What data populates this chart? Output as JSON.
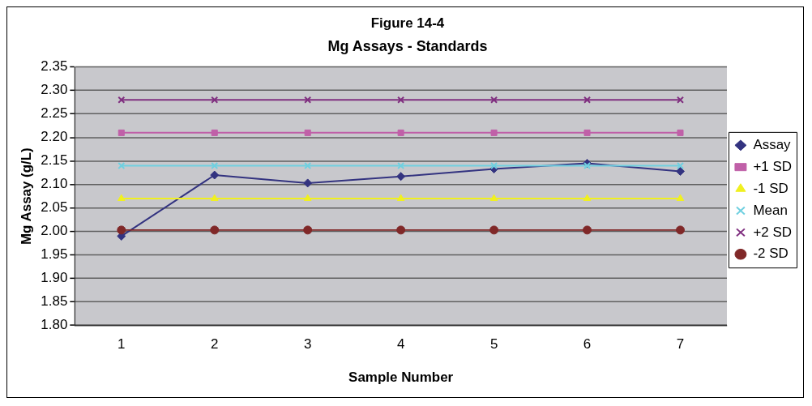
{
  "chart_data": {
    "type": "line",
    "title": "Figure 14-4",
    "subtitle": "Mg Assays - Standards",
    "xlabel": "Sample Number",
    "ylabel": "Mg Assay (g/L)",
    "categories": [
      "1",
      "2",
      "3",
      "4",
      "5",
      "6",
      "7"
    ],
    "series": [
      {
        "name": "Assay",
        "color": "#333380",
        "marker": "diamond",
        "values": [
          1.99,
          2.12,
          2.103,
          2.117,
          2.133,
          2.145,
          2.128
        ]
      },
      {
        "name": "+1 SD",
        "color": "#c060a8",
        "marker": "square",
        "values": [
          2.21,
          2.21,
          2.21,
          2.21,
          2.21,
          2.21,
          2.21
        ]
      },
      {
        "name": "-1 SD",
        "color": "#f0f020",
        "marker": "triangle",
        "values": [
          2.07,
          2.07,
          2.07,
          2.07,
          2.07,
          2.07,
          2.07
        ]
      },
      {
        "name": "Mean",
        "color": "#70d0e0",
        "marker": "cross",
        "values": [
          2.14,
          2.14,
          2.14,
          2.14,
          2.14,
          2.14,
          2.14
        ]
      },
      {
        "name": "+2 SD",
        "color": "#803080",
        "marker": "cross",
        "values": [
          2.28,
          2.28,
          2.28,
          2.28,
          2.28,
          2.28,
          2.28
        ]
      },
      {
        "name": "-2 SD",
        "color": "#802828",
        "marker": "circle",
        "values": [
          2.003,
          2.003,
          2.003,
          2.003,
          2.003,
          2.003,
          2.003
        ]
      }
    ],
    "ylim": [
      1.8,
      2.35
    ],
    "yticks": [
      {
        "value": 1.8,
        "label": "1.80"
      },
      {
        "value": 1.85,
        "label": "1.85"
      },
      {
        "value": 1.9,
        "label": "1.90"
      },
      {
        "value": 1.95,
        "label": "1.95"
      },
      {
        "value": 2.0,
        "label": "2.00"
      },
      {
        "value": 2.05,
        "label": "2.05"
      },
      {
        "value": 2.1,
        "label": "2.10"
      },
      {
        "value": 2.15,
        "label": "2.15"
      },
      {
        "value": 2.2,
        "label": "2.20"
      },
      {
        "value": 2.25,
        "label": "2.25"
      },
      {
        "value": 2.3,
        "label": "2.30"
      },
      {
        "value": 2.35,
        "label": "2.35"
      }
    ],
    "grid": "y",
    "legend": "right",
    "line_style": "solid"
  }
}
